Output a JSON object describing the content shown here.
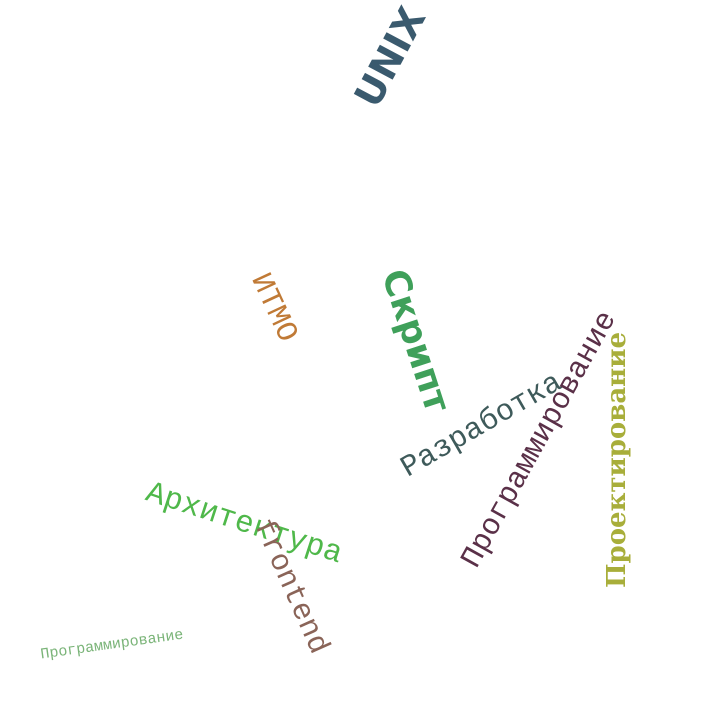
{
  "words": [
    {
      "text": "UNIX",
      "color": "#3a5a6e"
    },
    {
      "text": "ИТМО",
      "color": "#c07a36"
    },
    {
      "text": "Скрипт",
      "color": "#3fa05a"
    },
    {
      "text": "Разработка",
      "color": "#3e5a5a"
    },
    {
      "text": "Программирование",
      "color": "#5a3048"
    },
    {
      "text": "Проектирование",
      "color": "#a8ae3a"
    },
    {
      "text": "Архитектура",
      "color": "#4fb84a"
    },
    {
      "text": "frontend",
      "color": "#8a6458"
    },
    {
      "text": "Программирование",
      "color": "#7ab478"
    }
  ]
}
